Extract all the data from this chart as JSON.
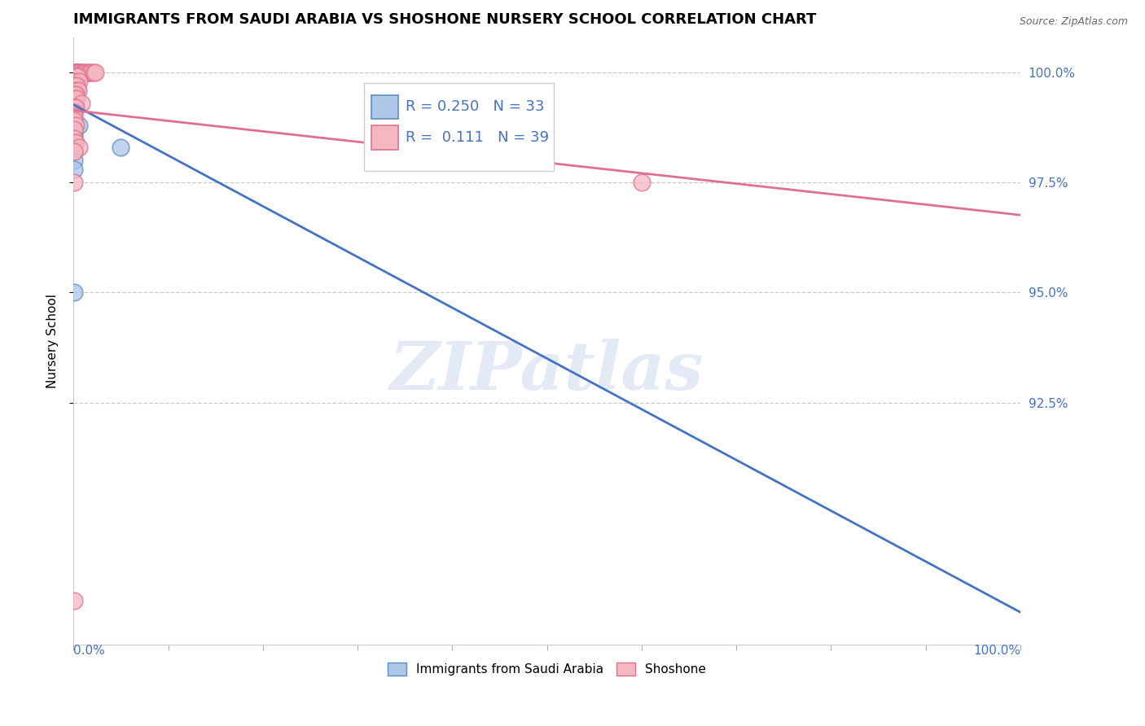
{
  "title": "IMMIGRANTS FROM SAUDI ARABIA VS SHOSHONE NURSERY SCHOOL CORRELATION CHART",
  "source": "Source: ZipAtlas.com",
  "ylabel": "Nursery School",
  "legend_blue_r": "0.250",
  "legend_blue_n": "33",
  "legend_pink_r": "0.111",
  "legend_pink_n": "39",
  "legend_label_blue": "Immigrants from Saudi Arabia",
  "legend_label_pink": "Shoshone",
  "blue_color": "#aec6e8",
  "pink_color": "#f4b8c1",
  "blue_edge_color": "#5b8ec4",
  "pink_edge_color": "#e07090",
  "blue_line_color": "#4472c4",
  "pink_line_color": "#e07090",
  "blue_scatter": [
    [
      0.001,
      1.0
    ],
    [
      0.002,
      1.0
    ],
    [
      0.003,
      1.0
    ],
    [
      0.004,
      1.0
    ],
    [
      0.005,
      1.0
    ],
    [
      0.006,
      1.0
    ],
    [
      0.007,
      1.0
    ],
    [
      0.001,
      0.999
    ],
    [
      0.002,
      0.999
    ],
    [
      0.001,
      0.998
    ],
    [
      0.002,
      0.998
    ],
    [
      0.003,
      0.998
    ],
    [
      0.001,
      0.997
    ],
    [
      0.002,
      0.997
    ],
    [
      0.001,
      0.996
    ],
    [
      0.002,
      0.996
    ],
    [
      0.003,
      0.996
    ],
    [
      0.001,
      0.995
    ],
    [
      0.002,
      0.995
    ],
    [
      0.001,
      0.994
    ],
    [
      0.002,
      0.994
    ],
    [
      0.001,
      0.993
    ],
    [
      0.001,
      0.992
    ],
    [
      0.001,
      0.991
    ],
    [
      0.006,
      0.988
    ],
    [
      0.001,
      0.986
    ],
    [
      0.001,
      0.985
    ],
    [
      0.001,
      0.984
    ],
    [
      0.05,
      0.983
    ],
    [
      0.001,
      0.982
    ],
    [
      0.001,
      0.98
    ],
    [
      0.001,
      0.978
    ],
    [
      0.001,
      0.95
    ]
  ],
  "pink_scatter": [
    [
      0.001,
      1.0
    ],
    [
      0.003,
      1.0
    ],
    [
      0.005,
      1.0
    ],
    [
      0.007,
      1.0
    ],
    [
      0.009,
      1.0
    ],
    [
      0.011,
      1.0
    ],
    [
      0.013,
      1.0
    ],
    [
      0.015,
      1.0
    ],
    [
      0.017,
      1.0
    ],
    [
      0.019,
      1.0
    ],
    [
      0.021,
      1.0
    ],
    [
      0.023,
      1.0
    ],
    [
      0.002,
      0.999
    ],
    [
      0.004,
      0.999
    ],
    [
      0.001,
      0.998
    ],
    [
      0.006,
      0.998
    ],
    [
      0.001,
      0.997
    ],
    [
      0.003,
      0.997
    ],
    [
      0.001,
      0.996
    ],
    [
      0.005,
      0.996
    ],
    [
      0.001,
      0.995
    ],
    [
      0.002,
      0.995
    ],
    [
      0.001,
      0.994
    ],
    [
      0.003,
      0.994
    ],
    [
      0.008,
      0.993
    ],
    [
      0.001,
      0.992
    ],
    [
      0.002,
      0.992
    ],
    [
      0.001,
      0.991
    ],
    [
      0.001,
      0.99
    ],
    [
      0.001,
      0.989
    ],
    [
      0.002,
      0.988
    ],
    [
      0.001,
      0.987
    ],
    [
      0.001,
      0.985
    ],
    [
      0.002,
      0.984
    ],
    [
      0.006,
      0.983
    ],
    [
      0.001,
      0.982
    ],
    [
      0.001,
      0.975
    ],
    [
      0.6,
      0.975
    ],
    [
      0.001,
      0.88
    ]
  ],
  "xlim": [
    0.0,
    1.0
  ],
  "ylim": [
    0.87,
    1.008
  ],
  "ytick_vals": [
    1.0,
    0.975,
    0.95,
    0.925
  ],
  "ytick_labels": [
    "100.0%",
    "97.5%",
    "95.0%",
    "92.5%"
  ],
  "xtick_vals": [
    0.0,
    0.1,
    0.2,
    0.3,
    0.4,
    0.5,
    0.6,
    0.7,
    0.8,
    0.9,
    1.0
  ],
  "background_color": "#ffffff",
  "watermark_text": "ZIPatlas",
  "grid_color": "#bbbbbb",
  "right_label_color": "#4472c4",
  "title_fontsize": 13,
  "axis_label_fontsize": 11,
  "tick_fontsize": 11,
  "source_fontsize": 9
}
